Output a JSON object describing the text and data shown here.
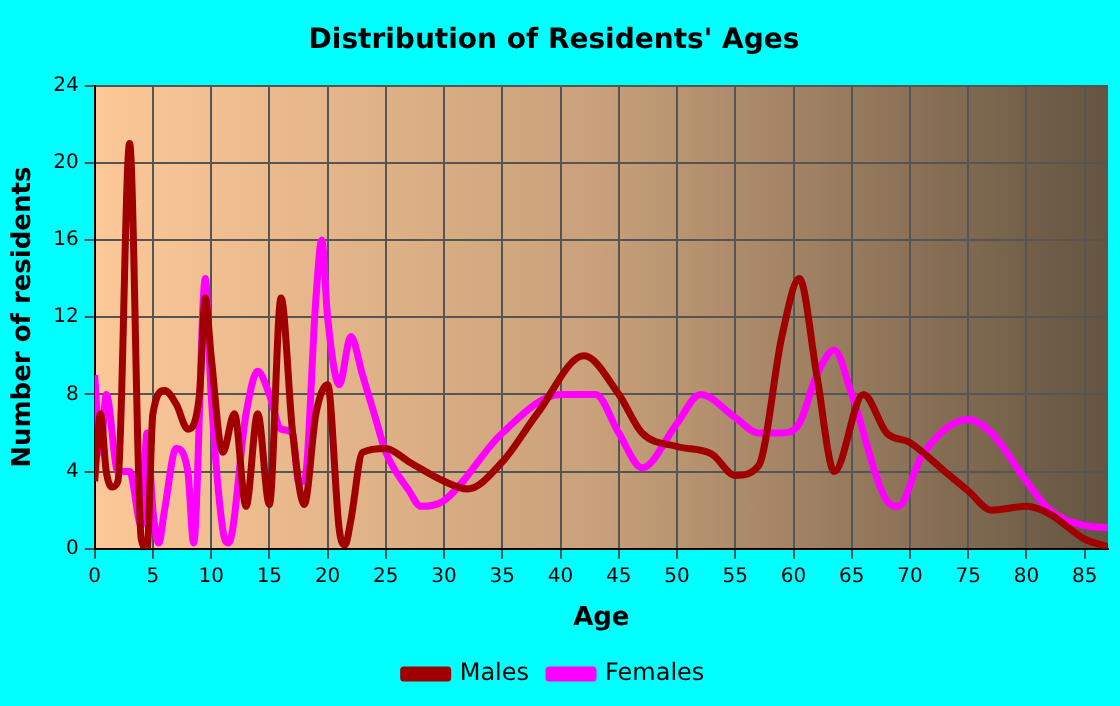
{
  "chart_data": {
    "type": "line",
    "title": "Distribution of Residents' Ages",
    "xlabel": "Age",
    "ylabel": "Number of residents",
    "xlim": [
      0,
      87
    ],
    "xticks": [
      0,
      5,
      10,
      15,
      20,
      25,
      30,
      35,
      40,
      45,
      50,
      55,
      60,
      65,
      70,
      75,
      80,
      85
    ],
    "ylim": [
      0,
      24
    ],
    "yticks": [
      0,
      4,
      8,
      12,
      16,
      20,
      24
    ],
    "grid": true,
    "legend": "bottom",
    "marker": "none",
    "line_style": "solid",
    "series": [
      {
        "name": "Males",
        "color": "#a00000",
        "x": [
          0,
          0.5,
          1,
          1.5,
          2,
          3,
          4,
          4.5,
          5,
          6,
          7,
          8,
          9,
          9.5,
          10,
          11,
          12,
          13,
          14,
          15,
          16,
          17,
          18,
          19,
          20,
          21,
          21.5,
          22,
          23,
          25,
          27,
          30,
          32,
          35,
          38,
          42,
          45,
          47,
          50,
          53,
          55,
          57,
          59,
          60.5,
          62,
          63.5,
          66,
          68,
          70,
          73,
          75,
          77,
          80,
          82,
          85,
          87
        ],
        "values": [
          3.5,
          7,
          4,
          3.2,
          3.5,
          21,
          0.5,
          0,
          7,
          8.2,
          7.5,
          6.2,
          8,
          13,
          10,
          5,
          7,
          2.2,
          7,
          2.3,
          13,
          6,
          2.3,
          7,
          8.5,
          1,
          0.2,
          1.5,
          5,
          5.2,
          4.5,
          3.5,
          3.1,
          4.5,
          7,
          10,
          8,
          6,
          5.3,
          4.9,
          3.8,
          4.3,
          11,
          14,
          9,
          4,
          8,
          6,
          5.5,
          4,
          3,
          2,
          2.2,
          1.8,
          0.5,
          0.1
        ]
      },
      {
        "name": "Females",
        "color": "#ff00ff",
        "x": [
          0,
          0.5,
          1,
          2,
          3,
          4,
          4.5,
          5,
          5.5,
          6,
          7,
          8,
          8.5,
          9.5,
          10,
          11,
          11.5,
          13,
          14,
          15,
          16,
          17,
          17.5,
          18,
          19,
          19.5,
          20,
          21,
          22,
          23,
          24,
          25,
          27,
          28,
          30,
          35,
          40,
          43,
          45,
          47,
          50,
          52,
          55,
          57,
          59,
          60.5,
          62,
          63.5,
          65,
          68,
          69,
          71,
          75,
          77,
          80,
          82,
          85,
          87
        ],
        "values": [
          9,
          5,
          8,
          4,
          4,
          1.2,
          6,
          2,
          0.3,
          2,
          5.2,
          4,
          0.3,
          14,
          8,
          1,
          0.3,
          7,
          9.2,
          8,
          6.2,
          6,
          3.5,
          3.5,
          13,
          16,
          12,
          8.5,
          11,
          9,
          7,
          5,
          3,
          2.2,
          2.5,
          6,
          8,
          8,
          6,
          4.2,
          6.5,
          8,
          6.8,
          6,
          6,
          6.5,
          9,
          10.3,
          8,
          2.5,
          2.2,
          4.8,
          6.7,
          6,
          3.5,
          2,
          1.2,
          1.1
        ]
      }
    ]
  }
}
